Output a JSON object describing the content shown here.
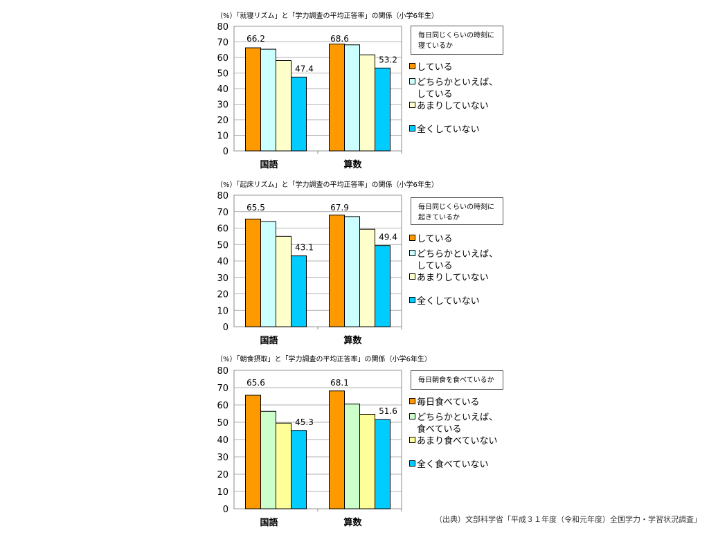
{
  "colors": {
    "orange": "#FF9900",
    "light_cyan": "#CCFFFF",
    "light_yellow": "#FFFFCC",
    "cyan": "#00CCFF",
    "light_green": "#CCFFCC",
    "yellow": "#FFFF99"
  },
  "chart_data": [
    {
      "type": "bar",
      "title": "（%）「就寝リズム」と「学力調査の平均正答率」の関係（小学6年生）",
      "legend_title": "毎日同じくらいの時刻に寝ているか",
      "categories": [
        "国語",
        "算数"
      ],
      "ylim": [
        0,
        80
      ],
      "yticks": [
        0,
        10,
        20,
        30,
        40,
        50,
        60,
        70,
        80
      ],
      "grid": true,
      "series": [
        {
          "name": "している",
          "color": "#FF9900",
          "values": [
            66.2,
            68.6
          ]
        },
        {
          "name": "どちらかといえば、している",
          "color": "#CCFFFF",
          "values": [
            65.3,
            68.1
          ]
        },
        {
          "name": "あまりしていない",
          "color": "#FFFFCC",
          "values": [
            58.0,
            61.7
          ]
        },
        {
          "name": "全くしていない",
          "color": "#00CCFF",
          "values": [
            47.4,
            53.2
          ]
        }
      ],
      "legend_labels": [
        [
          "している"
        ],
        [
          "どちらかといえば、",
          "している"
        ],
        [
          "あまりしていない"
        ],
        [
          "全くしていない"
        ]
      ],
      "data_labels": [
        {
          "series": 0,
          "text": "66.2",
          "cat": 0
        },
        {
          "series": 3,
          "text": "47.4",
          "cat": 0
        },
        {
          "series": 0,
          "text": "68.6",
          "cat": 1
        },
        {
          "series": 3,
          "text": "53.2",
          "cat": 1
        }
      ]
    },
    {
      "type": "bar",
      "title": "（%）「起床リズム」と「学力調査の平均正答率」の関係（小学6年生）",
      "legend_title": "毎日同じくらいの時刻に起きているか",
      "categories": [
        "国語",
        "算数"
      ],
      "ylim": [
        0,
        80
      ],
      "yticks": [
        0,
        10,
        20,
        30,
        40,
        50,
        60,
        70,
        80
      ],
      "grid": true,
      "series": [
        {
          "name": "している",
          "color": "#FF9900",
          "values": [
            65.5,
            67.9
          ]
        },
        {
          "name": "どちらかといえば、している",
          "color": "#CCFFFF",
          "values": [
            64.0,
            67.0
          ]
        },
        {
          "name": "あまりしていない",
          "color": "#FFFFCC",
          "values": [
            55.0,
            59.3
          ]
        },
        {
          "name": "全くしていない",
          "color": "#00CCFF",
          "values": [
            43.1,
            49.4
          ]
        }
      ],
      "legend_labels": [
        [
          "している"
        ],
        [
          "どちらかといえば、",
          "している"
        ],
        [
          "あまりしていない"
        ],
        [
          "全くしていない"
        ]
      ],
      "data_labels": [
        {
          "series": 0,
          "text": "65.5",
          "cat": 0
        },
        {
          "series": 3,
          "text": "43.1",
          "cat": 0
        },
        {
          "series": 0,
          "text": "67.9",
          "cat": 1
        },
        {
          "series": 3,
          "text": "49.4",
          "cat": 1
        }
      ]
    },
    {
      "type": "bar",
      "title": "（%）「朝食摂取」と「学力調査の平均正答率」の関係（小学6年生）",
      "legend_title": "毎日朝食を食べているか",
      "categories": [
        "国語",
        "算数"
      ],
      "ylim": [
        0,
        80
      ],
      "yticks": [
        0,
        10,
        20,
        30,
        40,
        50,
        60,
        70,
        80
      ],
      "grid": true,
      "series": [
        {
          "name": "毎日食べている",
          "color": "#FF9900",
          "values": [
            65.6,
            68.1
          ]
        },
        {
          "name": "どちらかといえば、食べている",
          "color": "#CCFFCC",
          "values": [
            56.3,
            60.5
          ]
        },
        {
          "name": "あまり食べていない",
          "color": "#FFFF99",
          "values": [
            49.5,
            54.6
          ]
        },
        {
          "name": "全く食べていない",
          "color": "#00CCFF",
          "values": [
            45.3,
            51.6
          ]
        }
      ],
      "legend_labels": [
        [
          "毎日食べている"
        ],
        [
          "どちらかといえば、",
          "食べている"
        ],
        [
          "あまり食べていない"
        ],
        [
          "全く食べていない"
        ]
      ],
      "data_labels": [
        {
          "series": 0,
          "text": "65.6",
          "cat": 0
        },
        {
          "series": 3,
          "text": "45.3",
          "cat": 0
        },
        {
          "series": 0,
          "text": "68.1",
          "cat": 1
        },
        {
          "series": 3,
          "text": "51.6",
          "cat": 1
        }
      ]
    }
  ],
  "source": "（出典）文部科学省「平成３１年度（令和元年度）全国学力・学習状況調査」"
}
